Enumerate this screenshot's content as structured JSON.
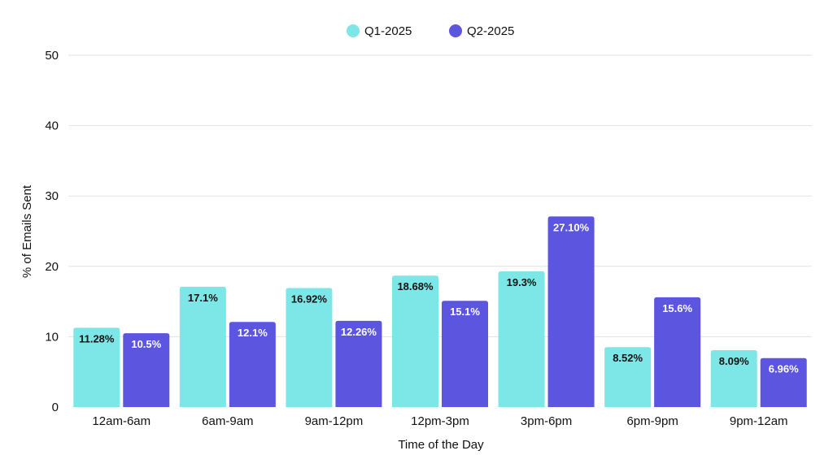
{
  "chart_data": {
    "type": "bar",
    "title": "",
    "xlabel": "Time of the Day",
    "ylabel": "% of Emails Sent",
    "ylim": [
      0,
      50
    ],
    "yticks": [
      0,
      10,
      20,
      30,
      40,
      50
    ],
    "grid": true,
    "legend_position": "top-center",
    "categories": [
      "12am-6am",
      "6am-9am",
      "9am-12pm",
      "12pm-3pm",
      "3pm-6pm",
      "6pm-9pm",
      "9pm-12am"
    ],
    "series": [
      {
        "name": "Q1-2025",
        "color": "#7de6e6",
        "label_color": "#111111",
        "values": [
          11.28,
          17.1,
          16.92,
          18.68,
          19.3,
          8.52,
          8.09
        ],
        "labels": [
          "11.28%",
          "17.1%",
          "16.92%",
          "18.68%",
          "19.3%",
          "8.52%",
          "8.09%"
        ]
      },
      {
        "name": "Q2-2025",
        "color": "#5b55e0",
        "label_color": "#ffffff",
        "values": [
          10.5,
          12.1,
          12.26,
          15.1,
          27.1,
          15.6,
          6.96
        ],
        "labels": [
          "10.5%",
          "12.1%",
          "12.26%",
          "15.1%",
          "27.10%",
          "15.6%",
          "6.96%"
        ]
      }
    ]
  }
}
